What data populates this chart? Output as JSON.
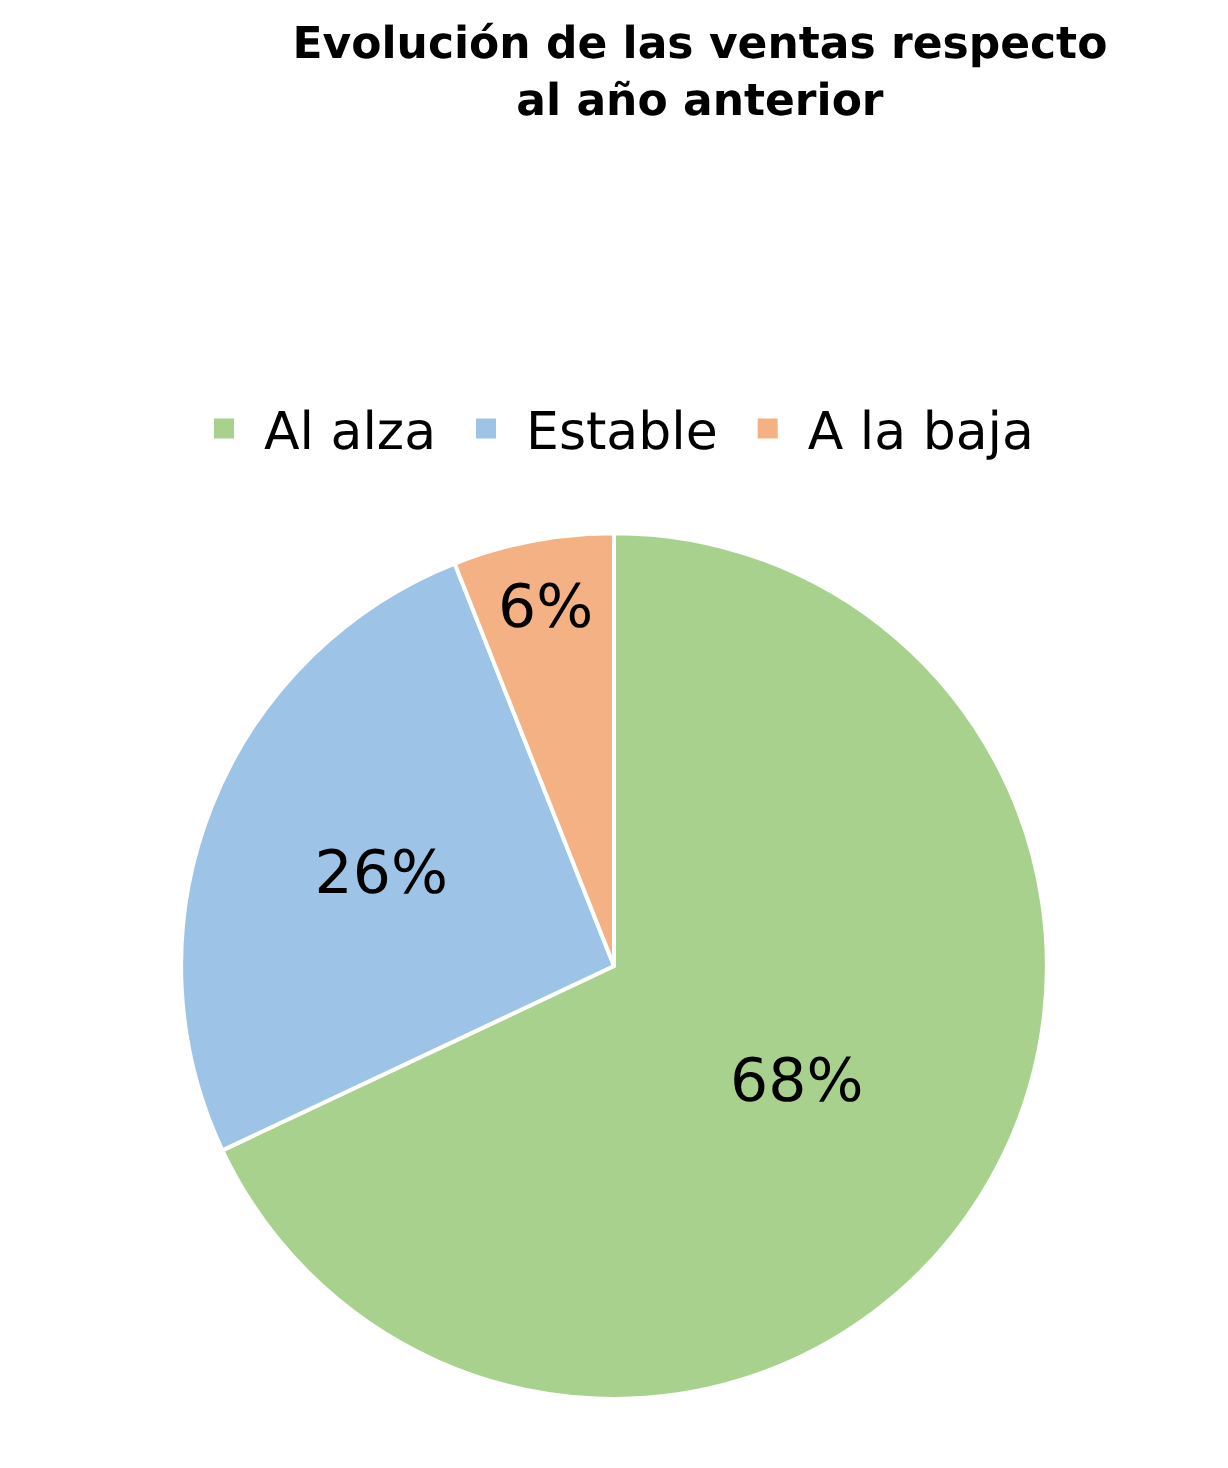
{
  "chart_data": {
    "type": "pie",
    "title": "Evolución de las ventas respecto\nal año anterior",
    "categories": [
      "Al alza",
      "Estable",
      "A la baja"
    ],
    "values": [
      68,
      26,
      6
    ],
    "colors": [
      "#a9d18e",
      "#9dc3e6",
      "#f4b183"
    ],
    "value_labels": [
      "68%",
      "26%",
      "6%"
    ],
    "legend": "top"
  }
}
